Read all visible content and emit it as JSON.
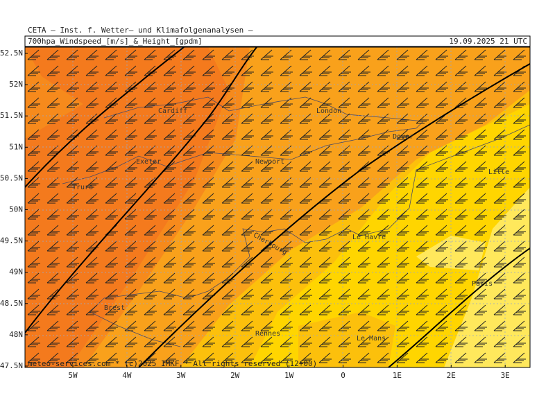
{
  "header": {
    "title": "CETA — Inst. f. Wetter— und Klimafolgenanalysen —",
    "subtitle": "700hpa_Windspeed_[m/s]_&_Height_[gpdm]",
    "valid_time": "19.09.2025 21 UTC"
  },
  "axes": {
    "lat_labels": [
      "52.5N",
      "52N",
      "51.5N",
      "51N",
      "50.5N",
      "50N",
      "49.5N",
      "49N",
      "48.5N",
      "48N",
      "47.5N"
    ],
    "lon_labels": [
      "5W",
      "4W",
      "3W",
      "2W",
      "1W",
      "0",
      "1E",
      "2E",
      "3E"
    ]
  },
  "places": [
    "Cardiff",
    "London",
    "Dover",
    "Exeter",
    "Newport",
    "Truro",
    "Lille",
    "Le Havre",
    "Cherbourg",
    "Paris",
    "Brest",
    "Rennes",
    "Le Mans"
  ],
  "footer": "meteo-services.com * (c)2025 IMKF * All rights reserved (12+00)"
}
